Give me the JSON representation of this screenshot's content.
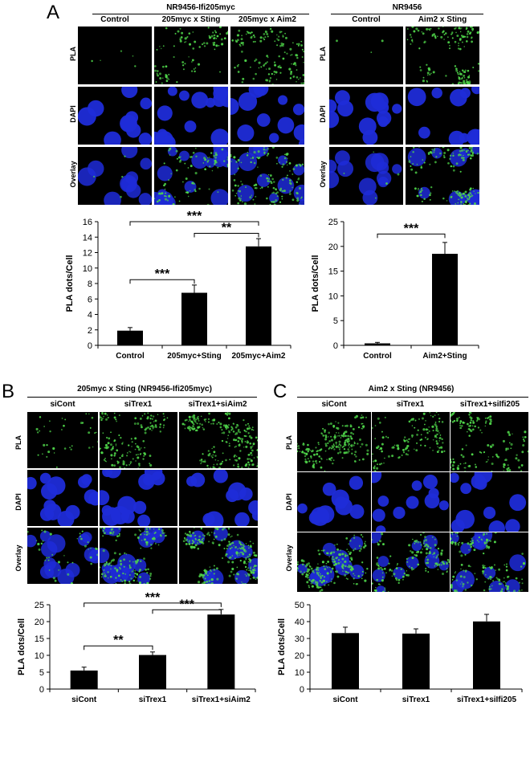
{
  "panels": {
    "A": {
      "letter": "A",
      "left": {
        "group_title": "NR9456-Ifi205myc",
        "columns": [
          "Control",
          "205myc x Sting",
          "205myc x Aim2"
        ],
        "rows": [
          "PLA",
          "DAPI",
          "Overlay"
        ]
      },
      "right": {
        "group_title": "NR9456",
        "columns": [
          "Control",
          "Aim2 x Sting"
        ],
        "rows": [
          "PLA",
          "DAPI",
          "Overlay"
        ]
      }
    },
    "B": {
      "letter": "B",
      "group_title": "205myc x Sting (NR9456-Ifi205myc)",
      "columns": [
        "siCont",
        "siTrex1",
        "siTrex1+siAim2"
      ],
      "rows": [
        "PLA",
        "DAPI",
        "Overlay"
      ]
    },
    "C": {
      "letter": "C",
      "group_title": "Aim2 x Sting (NR9456)",
      "columns": [
        "siCont",
        "siTrex1",
        "siTrex1+siIfi205"
      ],
      "rows": [
        "PLA",
        "DAPI",
        "Overlay"
      ]
    }
  },
  "chart_data": [
    {
      "type": "bar",
      "id": "A-left",
      "categories": [
        "Control",
        "205myc+Sting",
        "205myc+Aim2"
      ],
      "values": [
        1.9,
        6.8,
        12.8
      ],
      "errors": [
        0.4,
        1.0,
        1.0
      ],
      "ylabel": "PLA dots/Cell",
      "ylim": [
        0,
        16
      ],
      "yticks": [
        0,
        2,
        4,
        6,
        8,
        10,
        12,
        14,
        16
      ],
      "significance": [
        {
          "from": 0,
          "to": 1,
          "label": "***"
        },
        {
          "from": 0,
          "to": 2,
          "label": "***"
        },
        {
          "from": 1,
          "to": 2,
          "label": "**"
        }
      ]
    },
    {
      "type": "bar",
      "id": "A-right",
      "categories": [
        "Control",
        "Aim2+Sting"
      ],
      "values": [
        0.4,
        18.5
      ],
      "errors": [
        0.2,
        2.3
      ],
      "ylabel": "PLA dots/Cell",
      "ylim": [
        0,
        25
      ],
      "yticks": [
        0,
        5,
        10,
        15,
        20,
        25
      ],
      "significance": [
        {
          "from": 0,
          "to": 1,
          "label": "***"
        }
      ]
    },
    {
      "type": "bar",
      "id": "B",
      "categories": [
        "siCont",
        "siTrex1",
        "siTrex1+siAim2"
      ],
      "values": [
        5.5,
        10.1,
        22.1
      ],
      "errors": [
        1.0,
        0.9,
        1.5
      ],
      "ylabel": "PLA dots/Cell",
      "ylim": [
        0,
        25
      ],
      "yticks": [
        0,
        5,
        10,
        15,
        20,
        25
      ],
      "significance": [
        {
          "from": 0,
          "to": 1,
          "label": "**"
        },
        {
          "from": 0,
          "to": 2,
          "label": "***"
        },
        {
          "from": 1,
          "to": 2,
          "label": "***"
        }
      ]
    },
    {
      "type": "bar",
      "id": "C",
      "categories": [
        "siCont",
        "siTrex1",
        "siTrex1+siIfi205"
      ],
      "values": [
        33.2,
        32.9,
        40.1
      ],
      "errors": [
        3.5,
        2.8,
        4.2
      ],
      "ylabel": "PLA dots/Cell",
      "ylim": [
        0,
        50
      ],
      "yticks": [
        0,
        10,
        20,
        30,
        40,
        50
      ],
      "significance": []
    }
  ],
  "colors": {
    "bar": "#000000",
    "pla_signal": "#4fd64a",
    "dapi_signal": "#1f2cd8",
    "tile_bg": "#000000"
  }
}
